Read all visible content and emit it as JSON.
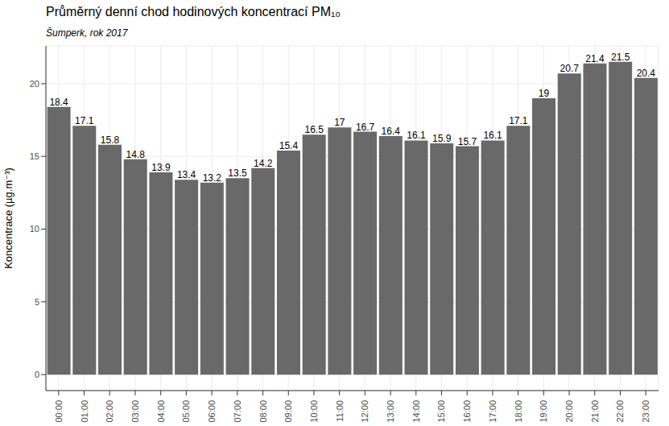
{
  "chart_data": {
    "type": "bar",
    "title": "Průměrný denní chod hodinových koncentrací PM₁₀",
    "subtitle": "Šumperk, rok 2017",
    "y_label": "Koncentrace (µg.m⁻³)",
    "categories": [
      "00:00",
      "01:00",
      "02:00",
      "03:00",
      "04:00",
      "05:00",
      "06:00",
      "07:00",
      "08:00",
      "09:00",
      "10:00",
      "11:00",
      "12:00",
      "13:00",
      "14:00",
      "15:00",
      "16:00",
      "17:00",
      "18:00",
      "19:00",
      "20:00",
      "21:00",
      "22:00",
      "23:00"
    ],
    "values": [
      18.4,
      17.1,
      15.8,
      14.8,
      13.9,
      13.4,
      13.2,
      13.5,
      14.2,
      15.4,
      16.5,
      17,
      16.7,
      16.4,
      16.1,
      15.9,
      15.7,
      16.1,
      17.1,
      19,
      20.7,
      21.4,
      21.5,
      20.4
    ],
    "color": "#696969",
    "ylim": [
      -1.1,
      22.6
    ],
    "yticks": [
      0,
      5,
      10,
      15,
      20
    ],
    "grid": true,
    "data_labels": true
  }
}
